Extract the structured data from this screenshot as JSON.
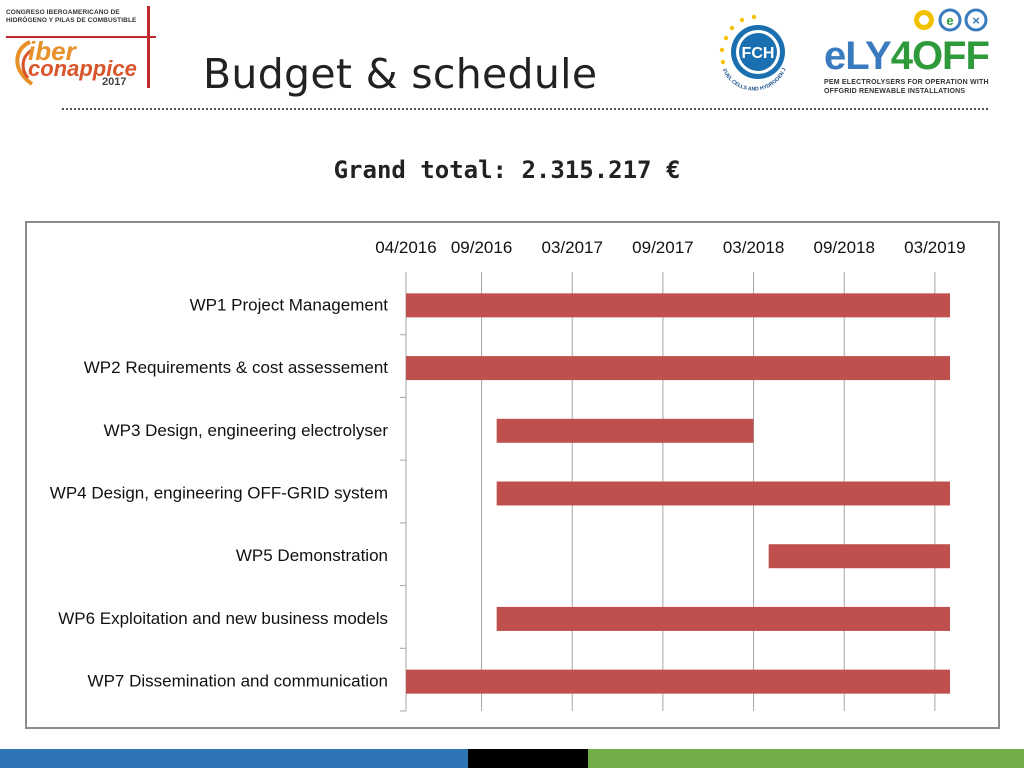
{
  "header": {
    "title": "Budget & schedule",
    "congress_logo": {
      "line1": "CONGRESO IBEROAMERICANO DE",
      "line2": "HIDRÓGENO Y PILAS DE COMBUSTIBLE",
      "brand1": "iber",
      "brand2": "conappice",
      "year": "2017"
    },
    "fch_logo": {
      "text": "FCH",
      "ring_text": "FUEL CELLS AND HYDROGEN JOINT UNDERTAKING"
    },
    "ely_logo": {
      "brand_ely": "eLY",
      "brand_4": "4",
      "brand_off": "OFF",
      "line1": "PEM ELECTROLYSERS FOR OPERATION WITH",
      "line2": "OFFGRID RENEWABLE INSTALLATIONS"
    }
  },
  "grand_total": "Grand total: 2.315.217 €",
  "colors": {
    "bar": "#c0504d",
    "grid": "#a6a6a6",
    "footer_blue": "#2e75b6",
    "footer_black": "#000000",
    "footer_green": "#70ad47"
  },
  "chart_data": {
    "type": "gantt",
    "title": "",
    "xlabel": "",
    "ylabel": "",
    "x_ticks": [
      "04/2016",
      "09/2016",
      "03/2017",
      "09/2017",
      "03/2018",
      "09/2018",
      "03/2019"
    ],
    "x_tick_months": [
      0,
      5,
      11,
      17,
      23,
      29,
      35
    ],
    "x_unit": "months from 04/2016",
    "xlim": [
      0,
      36
    ],
    "grid": "vertical",
    "tasks": [
      {
        "label": "WP1 Project Management",
        "start": "04/2016",
        "end": "03/2019",
        "start_m": 0,
        "end_m": 36
      },
      {
        "label": "WP2 Requirements & cost assessement",
        "start": "04/2016",
        "end": "03/2019",
        "start_m": 0,
        "end_m": 36
      },
      {
        "label": "WP3 Design, engineering electrolyser",
        "start": "10/2016",
        "end": "03/2018",
        "start_m": 6,
        "end_m": 23
      },
      {
        "label": "WP4 Design, engineering OFF-GRID system",
        "start": "10/2016",
        "end": "03/2019",
        "start_m": 6,
        "end_m": 36
      },
      {
        "label": "WP5 Demonstration",
        "start": "04/2018",
        "end": "03/2019",
        "start_m": 24,
        "end_m": 36
      },
      {
        "label": "WP6 Exploitation and new business models",
        "start": "10/2016",
        "end": "03/2019",
        "start_m": 6,
        "end_m": 36
      },
      {
        "label": "WP7 Dissemination and communication",
        "start": "04/2016",
        "end": "03/2019",
        "start_m": 0,
        "end_m": 36
      }
    ]
  }
}
